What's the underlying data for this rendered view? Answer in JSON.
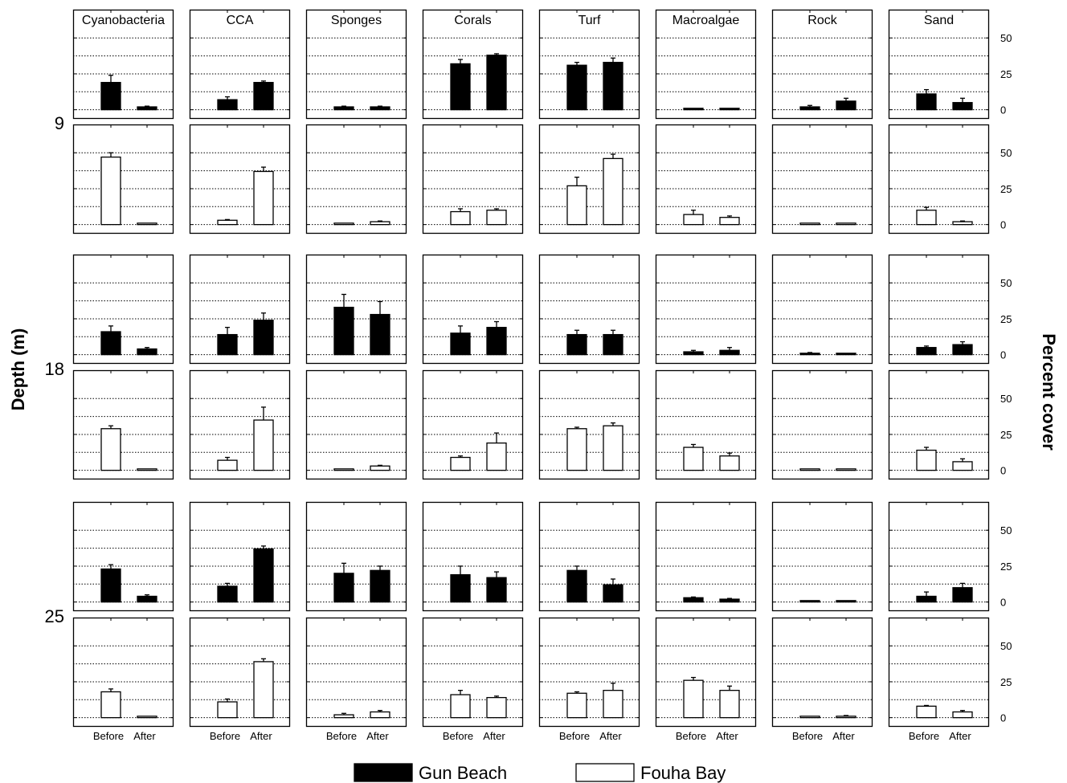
{
  "chart_data": {
    "type": "bar",
    "categories": [
      "Before",
      "After"
    ],
    "panels": [
      "Cyanobacteria",
      "CCA",
      "Sponges",
      "Corals",
      "Turf",
      "Macroalgae",
      "Rock",
      "Sand"
    ],
    "depths": [
      "9",
      "18",
      "25"
    ],
    "sites": [
      {
        "name": "Gun Beach",
        "fill": "#000000"
      },
      {
        "name": "Fouha Bay",
        "fill": "#ffffff"
      }
    ],
    "ylabel": "Percent cover",
    "ylabel_left": "Depth (m)",
    "yticks": [
      0,
      25,
      50
    ],
    "ylim": [
      -3,
      63
    ],
    "grid": true,
    "legend_position": "bottom-center",
    "values": {
      "9": {
        "Gun Beach": {
          "Cyanobacteria": [
            [
              19,
              5
            ],
            [
              2,
              0.5
            ]
          ],
          "CCA": [
            [
              7,
              2
            ],
            [
              19,
              1
            ]
          ],
          "Sponges": [
            [
              2,
              0.5
            ],
            [
              2,
              0.5
            ]
          ],
          "Corals": [
            [
              32,
              3
            ],
            [
              38,
              1
            ]
          ],
          "Turf": [
            [
              31,
              2
            ],
            [
              33,
              3
            ]
          ],
          "Macroalgae": [
            [
              1,
              0
            ],
            [
              1,
              0
            ]
          ],
          "Rock": [
            [
              2,
              1
            ],
            [
              6,
              2
            ]
          ],
          "Sand": [
            [
              11,
              3
            ],
            [
              5,
              3
            ]
          ]
        },
        "Fouha Bay": {
          "Cyanobacteria": [
            [
              47,
              3
            ],
            [
              1,
              0
            ]
          ],
          "CCA": [
            [
              3,
              0.5
            ],
            [
              37,
              3
            ]
          ],
          "Sponges": [
            [
              1,
              0
            ],
            [
              2,
              0.5
            ]
          ],
          "Corals": [
            [
              9,
              2
            ],
            [
              10,
              1
            ]
          ],
          "Turf": [
            [
              27,
              6
            ],
            [
              46,
              3
            ]
          ],
          "Macroalgae": [
            [
              7,
              3
            ],
            [
              5,
              1
            ]
          ],
          "Rock": [
            [
              1,
              0
            ],
            [
              1,
              0
            ]
          ],
          "Sand": [
            [
              10,
              2
            ],
            [
              2,
              0.5
            ]
          ]
        }
      },
      "18": {
        "Gun Beach": {
          "Cyanobacteria": [
            [
              16,
              4
            ],
            [
              4,
              1
            ]
          ],
          "CCA": [
            [
              14,
              5
            ],
            [
              24,
              5
            ]
          ],
          "Sponges": [
            [
              33,
              9
            ],
            [
              28,
              9
            ]
          ],
          "Corals": [
            [
              15,
              5
            ],
            [
              19,
              4
            ]
          ],
          "Turf": [
            [
              14,
              3
            ],
            [
              14,
              3
            ]
          ],
          "Macroalgae": [
            [
              2,
              1
            ],
            [
              3,
              2
            ]
          ],
          "Rock": [
            [
              1,
              0.5
            ],
            [
              1,
              0
            ]
          ],
          "Sand": [
            [
              5,
              1
            ],
            [
              7,
              2
            ]
          ]
        },
        "Fouha Bay": {
          "Cyanobacteria": [
            [
              29,
              2
            ],
            [
              1,
              0
            ]
          ],
          "CCA": [
            [
              7,
              2
            ],
            [
              35,
              9
            ]
          ],
          "Sponges": [
            [
              1,
              0
            ],
            [
              3,
              0.5
            ]
          ],
          "Corals": [
            [
              9,
              1
            ],
            [
              19,
              7
            ]
          ],
          "Turf": [
            [
              29,
              1
            ],
            [
              31,
              2
            ]
          ],
          "Macroalgae": [
            [
              16,
              2
            ],
            [
              10,
              2
            ]
          ],
          "Rock": [
            [
              1,
              0
            ],
            [
              1,
              0
            ]
          ],
          "Sand": [
            [
              14,
              2
            ],
            [
              6,
              2
            ]
          ]
        }
      },
      "25": {
        "Gun Beach": {
          "Cyanobacteria": [
            [
              23,
              3
            ],
            [
              4,
              1
            ]
          ],
          "CCA": [
            [
              11,
              2
            ],
            [
              37,
              2
            ]
          ],
          "Sponges": [
            [
              20,
              7
            ],
            [
              22,
              3
            ]
          ],
          "Corals": [
            [
              19,
              6
            ],
            [
              17,
              4
            ]
          ],
          "Turf": [
            [
              22,
              3
            ],
            [
              12,
              4
            ]
          ],
          "Macroalgae": [
            [
              3,
              0.5
            ],
            [
              2,
              0.5
            ]
          ],
          "Rock": [
            [
              1,
              0
            ],
            [
              1,
              0
            ]
          ],
          "Sand": [
            [
              4,
              3
            ],
            [
              10,
              3
            ]
          ]
        },
        "Fouha Bay": {
          "Cyanobacteria": [
            [
              18,
              2
            ],
            [
              1,
              0
            ]
          ],
          "CCA": [
            [
              11,
              2
            ],
            [
              39,
              2
            ]
          ],
          "Sponges": [
            [
              2,
              1
            ],
            [
              4,
              1
            ]
          ],
          "Corals": [
            [
              16,
              3
            ],
            [
              14,
              1
            ]
          ],
          "Turf": [
            [
              17,
              1
            ],
            [
              19,
              5
            ]
          ],
          "Macroalgae": [
            [
              26,
              2
            ],
            [
              19,
              3
            ]
          ],
          "Rock": [
            [
              1,
              0
            ],
            [
              1,
              0.5
            ]
          ],
          "Sand": [
            [
              8,
              0.5
            ],
            [
              4,
              1
            ]
          ]
        }
      }
    }
  }
}
